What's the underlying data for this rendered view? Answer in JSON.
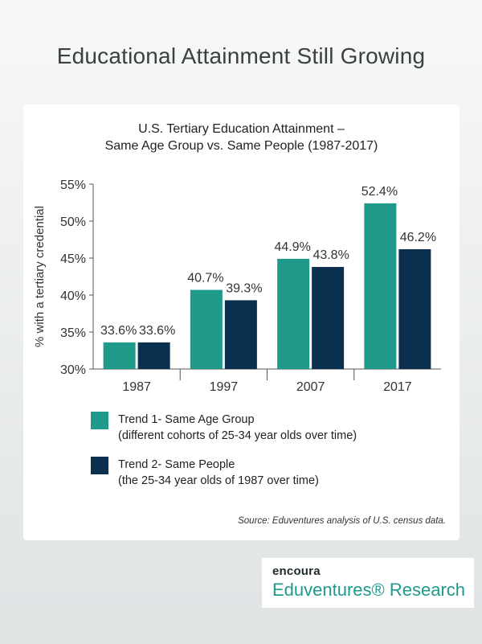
{
  "page_title": "Educational Attainment Still Growing",
  "chart_data": {
    "type": "bar",
    "title_lines": [
      "U.S. Tertiary Education Attainment –",
      "Same Age Group vs. Same People (1987-2017)"
    ],
    "categories": [
      "1987",
      "1997",
      "2007",
      "2017"
    ],
    "series": [
      {
        "name": "Trend 1- Same Age Group",
        "description": "(different cohorts of 25-34 year olds over time)",
        "color": "#1f9a8a",
        "values": [
          33.6,
          40.7,
          44.9,
          52.4
        ],
        "labels": [
          "33.6%",
          "40.7%",
          "44.9%",
          "52.4%"
        ]
      },
      {
        "name": "Trend 2- Same People",
        "description": "(the 25-34 year olds of 1987 over time)",
        "color": "#0b2f4f",
        "values": [
          33.6,
          39.3,
          43.8,
          46.2
        ],
        "labels": [
          "33.6%",
          "39.3%",
          "43.8%",
          "46.2%"
        ]
      }
    ],
    "ylabel": "% with a tertiary credential",
    "ylim": [
      30,
      55
    ],
    "yticks": [
      30,
      35,
      40,
      45,
      50,
      55
    ],
    "ytick_labels": [
      "30%",
      "35%",
      "40%",
      "45%",
      "50%",
      "55%"
    ],
    "grid": false,
    "legend_position": "bottom-left"
  },
  "source_note": "Source: Eduventures analysis of U.S. census data.",
  "brand": {
    "top": "encoura",
    "bottom": "Eduventures® Research"
  }
}
